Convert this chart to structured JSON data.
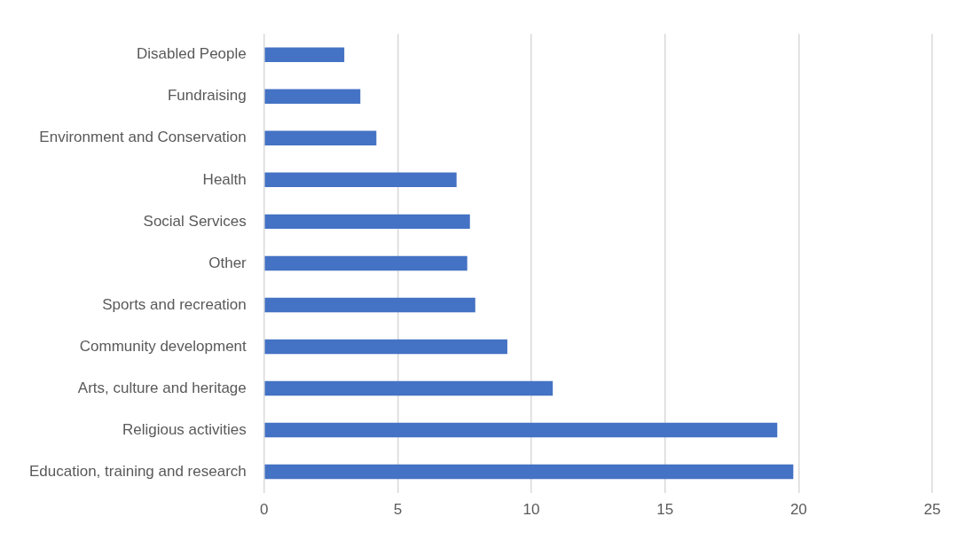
{
  "chart_data": {
    "type": "bar",
    "orientation": "horizontal",
    "categories": [
      "Disabled People",
      "Fundraising",
      "Environment and Conservation",
      "Health",
      "Social Services",
      "Other",
      "Sports and recreation",
      "Community development",
      "Arts, culture and heritage",
      "Religious activities",
      "Education, training and research"
    ],
    "values": [
      3.0,
      3.6,
      4.2,
      7.2,
      7.7,
      7.6,
      7.9,
      9.1,
      10.8,
      19.2,
      19.8
    ],
    "color": "#4472c4",
    "xlim": [
      0,
      25
    ],
    "xticks": [
      0,
      5,
      10,
      15,
      20,
      25
    ],
    "grid": "x",
    "legend": false
  }
}
